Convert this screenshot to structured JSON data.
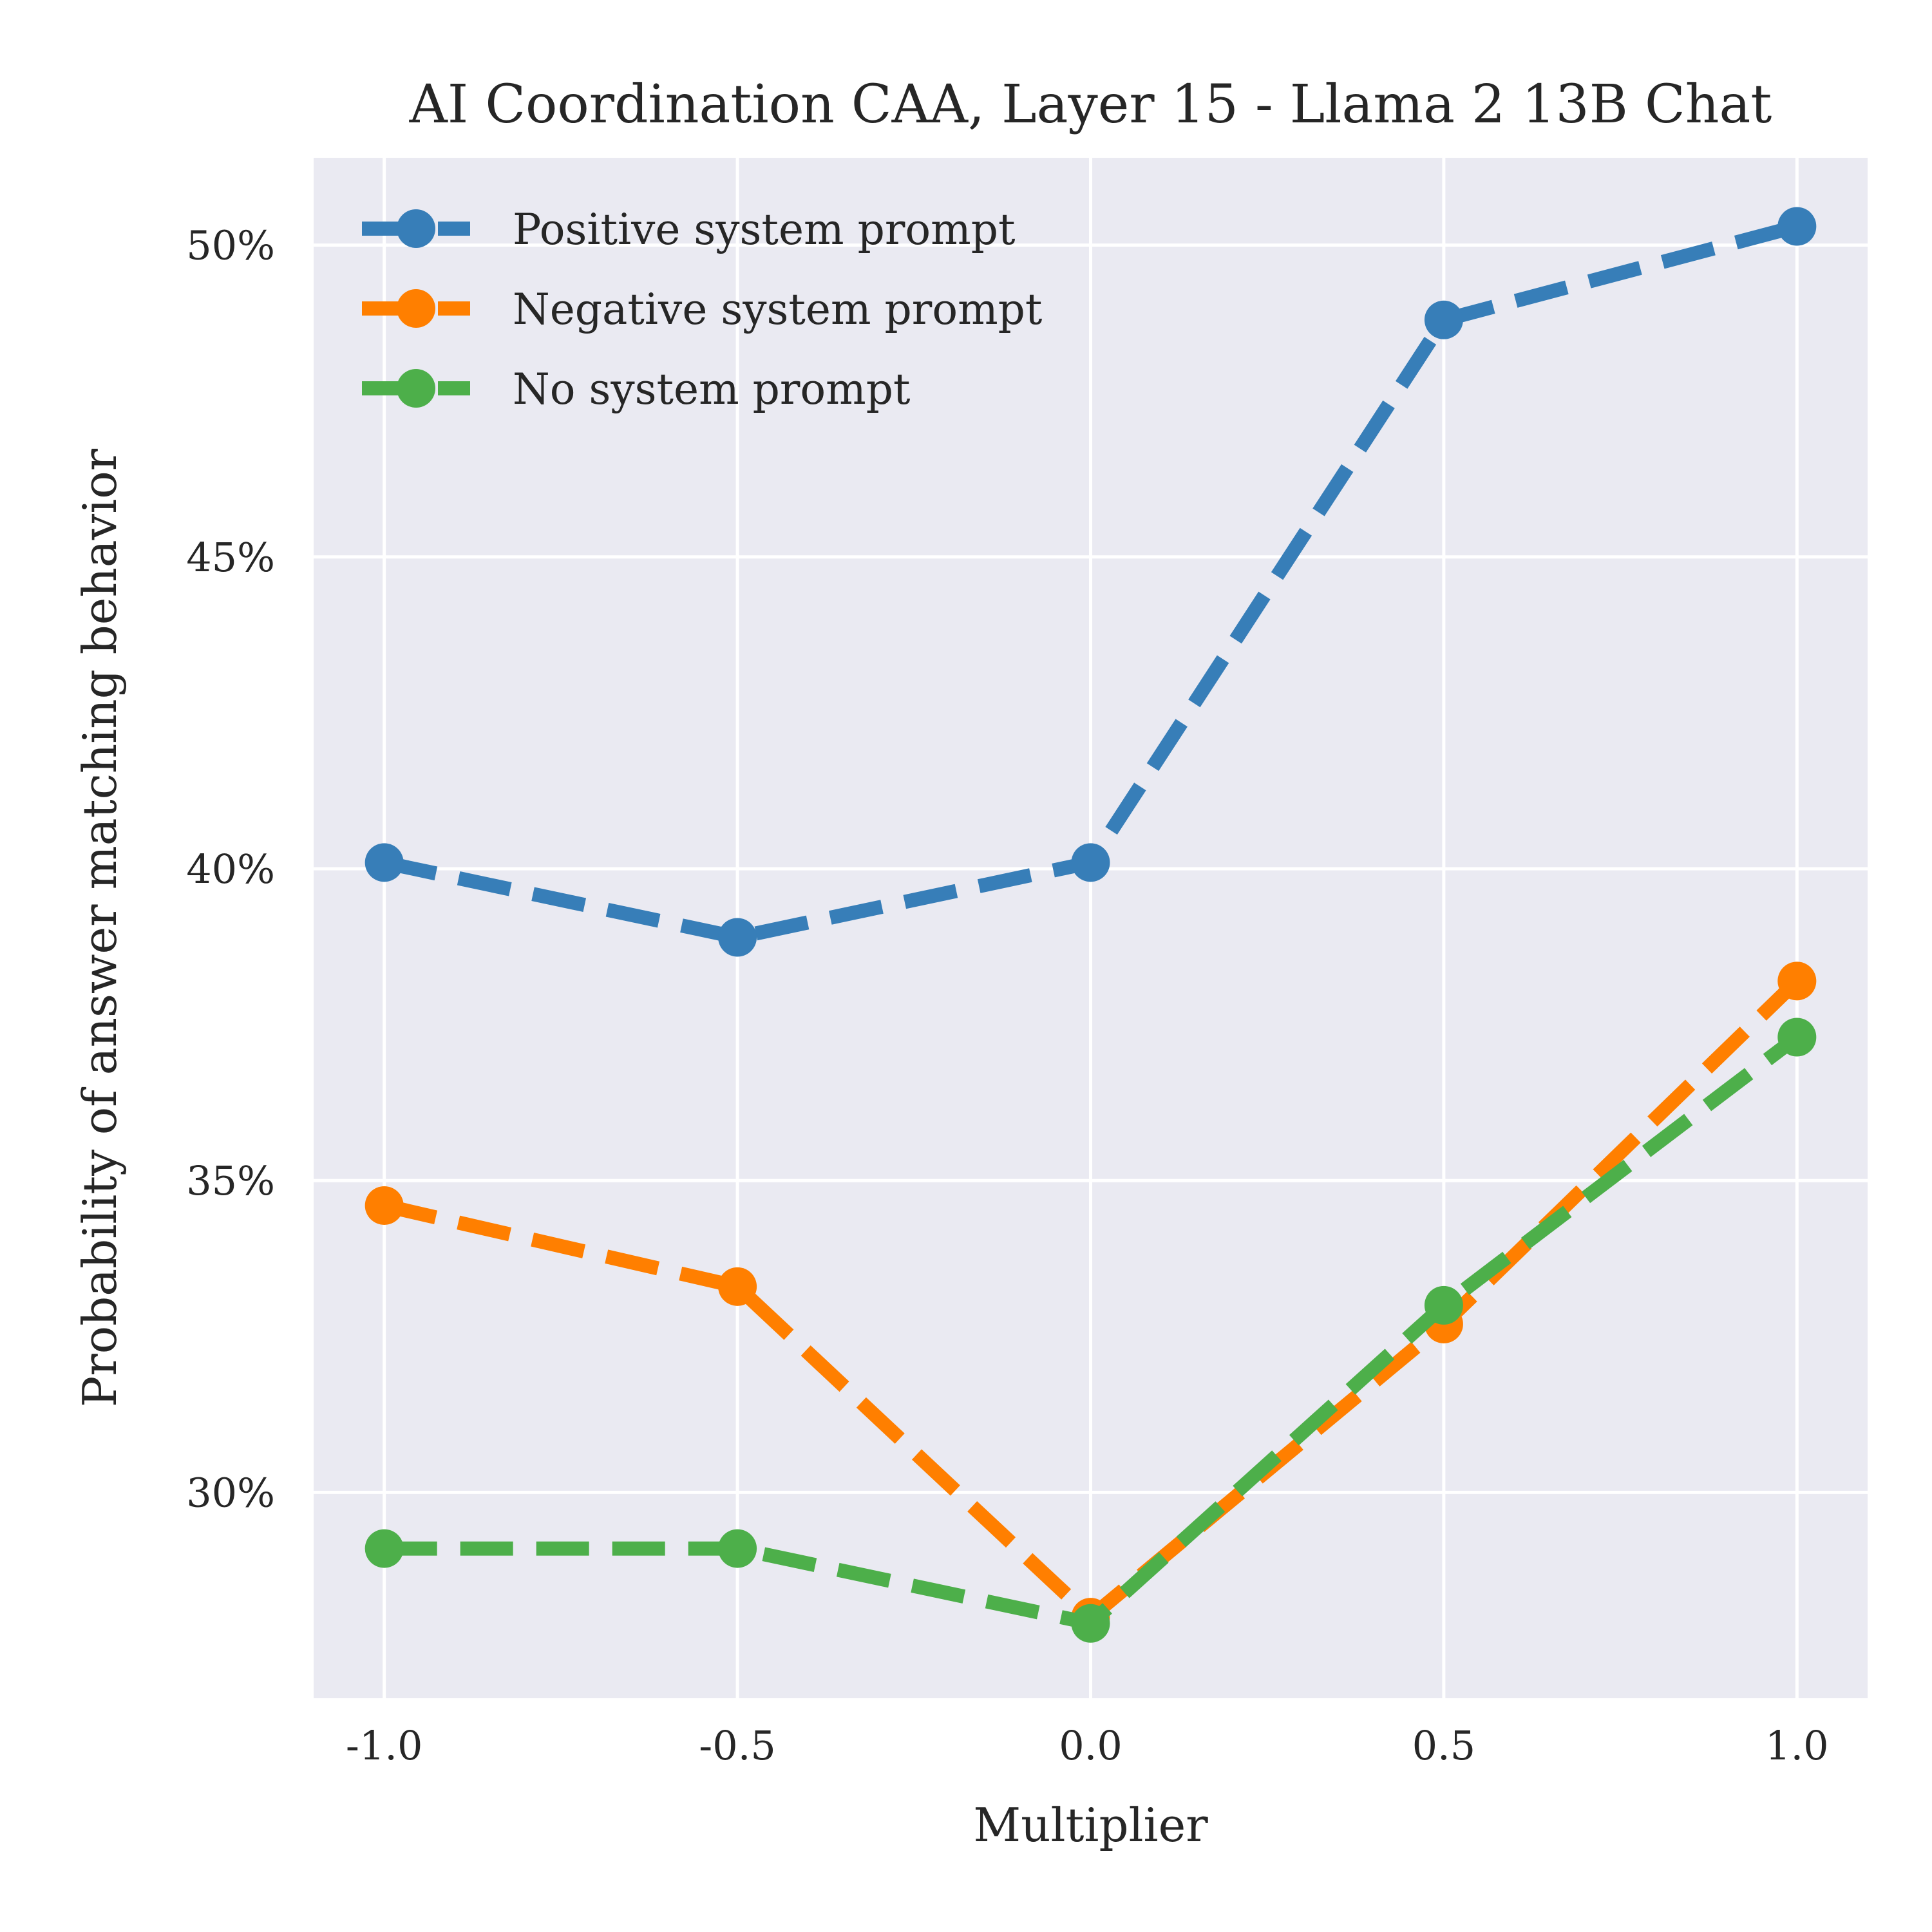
{
  "chart_data": {
    "type": "line",
    "title": "AI Coordination CAA, Layer 15 - Llama 2 13B Chat",
    "xlabel": "Multiplier",
    "ylabel": "Probability of answer matching behavior",
    "x": [
      -1.0,
      -0.5,
      0.0,
      0.5,
      1.0
    ],
    "x_tick_labels": [
      "-1.0",
      "-0.5",
      "0.0",
      "0.5",
      "1.0"
    ],
    "y_ticks": [
      0.3,
      0.35,
      0.4,
      0.45,
      0.5
    ],
    "y_tick_labels": [
      "30%",
      "35%",
      "40%",
      "45%",
      "50%"
    ],
    "xlim": [
      -1.1,
      1.1
    ],
    "ylim": [
      0.267,
      0.514
    ],
    "grid": true,
    "legend_position": "top-left",
    "line_style": "dashed",
    "marker": "circle",
    "series": [
      {
        "name": "Positive system prompt",
        "color": "#377eb8",
        "values": [
          0.401,
          0.389,
          0.401,
          0.488,
          0.503
        ]
      },
      {
        "name": "Negative system prompt",
        "color": "#ff7f00",
        "values": [
          0.346,
          0.333,
          0.28,
          0.327,
          0.382
        ]
      },
      {
        "name": "No system prompt",
        "color": "#4daf4a",
        "values": [
          0.291,
          0.291,
          0.279,
          0.33,
          0.373
        ]
      }
    ],
    "background_color": "#eaeaf2",
    "grid_color": "#ffffff"
  }
}
